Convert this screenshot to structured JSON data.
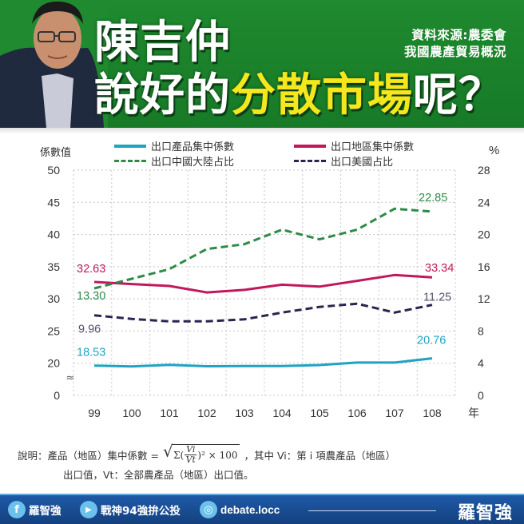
{
  "header": {
    "title_line1": "陳吉仲",
    "title_line2_pre": "說好的",
    "title_line2_highlight": "分散市場",
    "title_line2_post": "呢？",
    "source_line1": "資料來源:農委會",
    "source_line2": "我國農產貿易概況",
    "portrait_alt": "person-photo",
    "colors": {
      "bg": "#1f8a2f",
      "highlight": "#f5e71c"
    }
  },
  "chart": {
    "left_axis_title": "係數值",
    "right_axis_title": "%",
    "x_unit": "年",
    "legend": [
      {
        "label": "出口產品集中係數",
        "color": "#1fa3c4",
        "style": "solid"
      },
      {
        "label": "出口地區集中係數",
        "color": "#c2185b",
        "style": "solid"
      },
      {
        "label": "出口中國大陸占比",
        "color": "#2e8b46",
        "style": "dashed"
      },
      {
        "label": "出口美國占比",
        "color": "#2c2450",
        "style": "dashed"
      }
    ],
    "left_ticks": [
      "50",
      "45",
      "40",
      "35",
      "30",
      "25",
      "20",
      "0"
    ],
    "right_ticks": [
      "28",
      "24",
      "20",
      "16",
      "12",
      "8",
      "4",
      "0"
    ],
    "x_ticks": [
      "99",
      "100",
      "101",
      "102",
      "103",
      "104",
      "105",
      "106",
      "107",
      "108"
    ],
    "axis_break": "≈",
    "labels": {
      "product_start": "18.53",
      "product_end": "20.76",
      "region_start": "32.63",
      "region_end": "33.34",
      "china_start": "13.30",
      "china_end": "22.85",
      "us_start": "9.96",
      "us_end": "11.25"
    }
  },
  "chart_data": {
    "type": "line",
    "title": "",
    "xlabel": "年",
    "ylabel": "係數值",
    "ylabel_right": "%",
    "categories": [
      "99",
      "100",
      "101",
      "102",
      "103",
      "104",
      "105",
      "106",
      "107",
      "108"
    ],
    "ylim": [
      0,
      50
    ],
    "ylim_right": [
      0,
      28
    ],
    "left_axis_break": "between 0 and 20",
    "grid": true,
    "legend_position": "top",
    "series": [
      {
        "name": "出口產品集中係數",
        "axis": "left",
        "style": "solid",
        "color": "#1fa3c4",
        "values": [
          18.53,
          18.0,
          18.95,
          18.1,
          18.2,
          18.2,
          18.85,
          20.1,
          20.1,
          20.76
        ]
      },
      {
        "name": "出口地區集中係數",
        "axis": "left",
        "style": "solid",
        "color": "#c2185b",
        "values": [
          32.63,
          32.3,
          32.0,
          31.0,
          31.4,
          32.2,
          31.9,
          32.8,
          33.7,
          33.34
        ]
      },
      {
        "name": "出口中國大陸占比",
        "axis": "right",
        "style": "dashed",
        "color": "#2e8b46",
        "values": [
          13.3,
          14.5,
          15.7,
          18.2,
          18.8,
          20.6,
          19.4,
          20.6,
          23.2,
          22.85
        ]
      },
      {
        "name": "出口美國占比",
        "axis": "right",
        "style": "dashed",
        "color": "#2c2450",
        "values": [
          9.96,
          9.5,
          9.2,
          9.2,
          9.45,
          10.3,
          11.0,
          11.4,
          10.3,
          11.25
        ]
      }
    ],
    "annotations": [
      "18.53",
      "20.76",
      "32.63",
      "33.34",
      "13.30",
      "22.85",
      "9.96",
      "11.25"
    ]
  },
  "note": {
    "prefix": "說明：產品（地區）集中係數 =",
    "formula_sum": "Σ(",
    "formula_num": "Vi",
    "formula_den": "Vt",
    "formula_tail": ")² × 100",
    "suffix": "，其中 Vi：第 i 項農產品（地區）",
    "line2": "出口值，Vt：全部農產品（地區）出口值。"
  },
  "footer": {
    "facebook_label": "羅智強",
    "youtube_label": "戰神94強拚公投",
    "instagram_label": "debate.locc",
    "brand": "羅智強",
    "facebook_glyph": "f",
    "youtube_glyph": "▶",
    "instagram_glyph": "◎"
  }
}
